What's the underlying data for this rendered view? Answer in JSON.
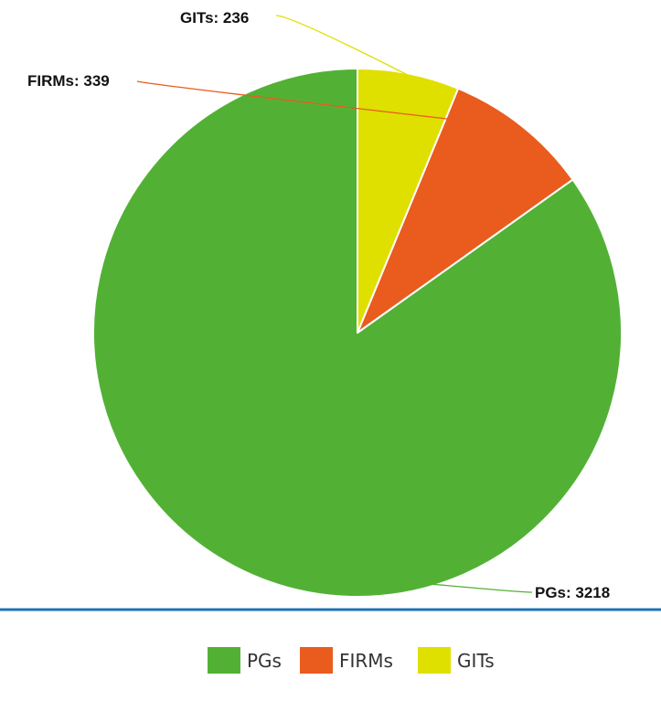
{
  "chart_data": {
    "type": "pie",
    "start_angle_deg": 0,
    "direction": "counterclockwise",
    "slices": [
      {
        "name": "PGs",
        "value": 3218,
        "label": "PGs: 3218",
        "color": "#52b135"
      },
      {
        "name": "FIRMs",
        "value": 339,
        "label": "FIRMs: 339",
        "color": "#ea5b1e"
      },
      {
        "name": "GITs",
        "value": 236,
        "label": "GITs: 236",
        "color": "#dfdf00"
      }
    ],
    "legend": {
      "placement": "bottom",
      "items": [
        {
          "name": "PGs",
          "color": "#52b135"
        },
        {
          "name": "FIRMs",
          "color": "#ea5b1e"
        },
        {
          "name": "GITs",
          "color": "#dfdf00"
        }
      ]
    },
    "divider_color": "#1f72b4",
    "leader_line_color": "slice"
  }
}
